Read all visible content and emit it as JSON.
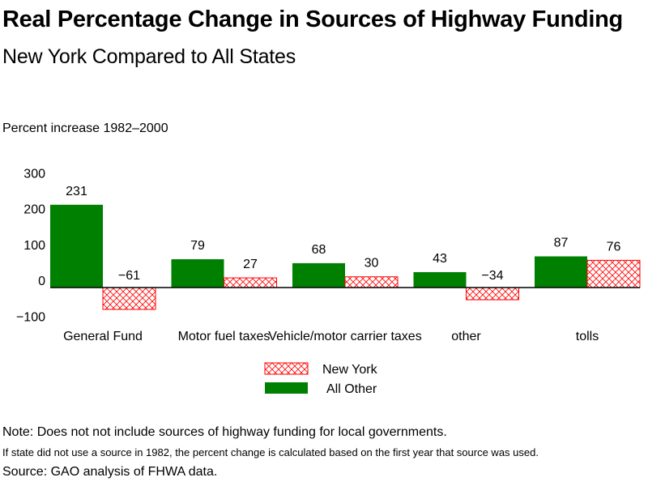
{
  "title": "Real Percentage Change in Sources of Highway Funding",
  "subtitle": "New York Compared to All States",
  "notes": [
    "Note: Does not not include sources of highway funding for local governments.",
    "If state did not use a source in 1982, the percent change is calculated based on the first year that source was used.",
    "Source: GAO analysis of FHWA data."
  ],
  "colors": {
    "all_other": "#008000",
    "new_york": "#ff0000",
    "new_york_fill": "#ffffff"
  },
  "chart_data": {
    "type": "bar",
    "title": "Real Percentage Change in Sources of Highway Funding",
    "subtitle": "New York Compared to All States",
    "ylabel": "Percent increase 1982–2000",
    "xlabel": "",
    "ylim": [
      -100,
      300
    ],
    "yticks": [
      300,
      200,
      100,
      0,
      -100
    ],
    "ytick_labels": [
      "300",
      "200",
      "100",
      "0",
      "−100"
    ],
    "grid": false,
    "legend_position": "bottom-center",
    "categories": [
      "General Fund",
      "Motor fuel taxes",
      "Vehicle/motor carrier taxes",
      "other",
      "tolls"
    ],
    "series": [
      {
        "name": "All Other",
        "pattern": "solid",
        "values": [
          231,
          79,
          68,
          43,
          87
        ],
        "labels": [
          "231",
          "79",
          "68",
          "43",
          "87"
        ]
      },
      {
        "name": "New York",
        "pattern": "crosshatch",
        "values": [
          -61,
          27,
          30,
          -34,
          76
        ],
        "labels": [
          "−61",
          "27",
          "30",
          "−34",
          "76"
        ]
      }
    ],
    "legend": [
      {
        "name": "New York",
        "pattern": "crosshatch"
      },
      {
        "name": "All Other",
        "pattern": "solid"
      }
    ]
  }
}
